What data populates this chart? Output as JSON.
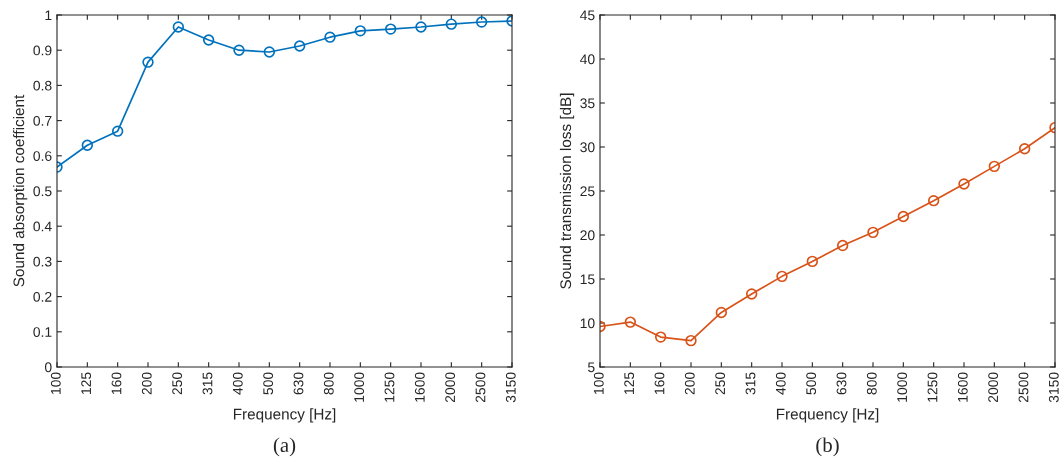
{
  "chart_data": [
    {
      "type": "line",
      "xlabel": "Frequency [Hz]",
      "ylabel": "Sound absorption coefficient",
      "annotations": [
        "(a)"
      ],
      "categories": [
        "100",
        "125",
        "160",
        "200",
        "250",
        "315",
        "400",
        "500",
        "630",
        "800",
        "1000",
        "1250",
        "1600",
        "2000",
        "2500",
        "3150"
      ],
      "series": [
        {
          "color": "#0072bd",
          "values": [
            0.568,
            0.63,
            0.67,
            0.866,
            0.966,
            0.929,
            0.9,
            0.895,
            0.912,
            0.937,
            0.955,
            0.96,
            0.966,
            0.974,
            0.98,
            0.983
          ]
        }
      ],
      "ylim": [
        0,
        1
      ],
      "yticks": [
        0,
        0.1,
        0.2,
        0.3,
        0.4,
        0.5,
        0.6,
        0.7,
        0.8,
        0.9,
        1
      ],
      "marker": "circle",
      "grid": false,
      "legend": false
    },
    {
      "type": "line",
      "xlabel": "Frequency [Hz]",
      "ylabel": "Sound transmission loss [dB]",
      "annotations": [
        "(b)"
      ],
      "categories": [
        "100",
        "125",
        "160",
        "200",
        "250",
        "315",
        "400",
        "500",
        "630",
        "800",
        "1000",
        "1250",
        "1600",
        "2000",
        "2500",
        "3150"
      ],
      "series": [
        {
          "color": "#d95319",
          "values": [
            9.6,
            10.1,
            8.4,
            8.0,
            11.2,
            13.3,
            15.3,
            17.0,
            18.8,
            20.3,
            22.1,
            23.9,
            25.8,
            27.8,
            29.8,
            32.2
          ]
        }
      ],
      "ylim": [
        5,
        45
      ],
      "yticks": [
        5,
        10,
        15,
        20,
        25,
        30,
        35,
        40,
        45
      ],
      "marker": "circle",
      "grid": false,
      "legend": false
    }
  ]
}
